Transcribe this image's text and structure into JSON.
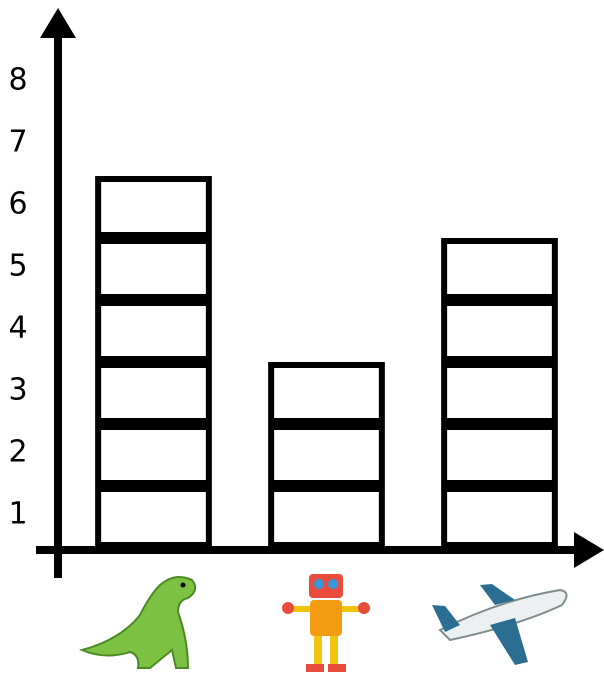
{
  "chart_data": {
    "type": "pictograph",
    "categories": [
      null,
      null,
      null
    ],
    "values": [
      6,
      3,
      5
    ],
    "color": "#000000",
    "ylim": [
      0,
      8
    ],
    "yticks": [
      1,
      2,
      3,
      4,
      5,
      6,
      7,
      8
    ],
    "grid": false
  }
}
